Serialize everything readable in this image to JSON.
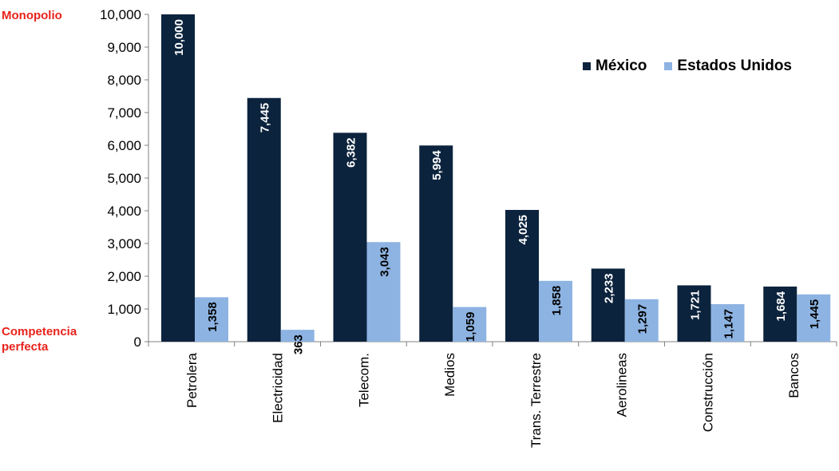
{
  "labels": {
    "top": "Monopolio",
    "bottom_line1": "Competencia",
    "bottom_line2": "perfecta"
  },
  "colors": {
    "mexico": "#0c233d",
    "usa": "#8db3e2",
    "side_labels": "#e8231b",
    "axis": "#808080"
  },
  "chart_data": {
    "type": "bar",
    "title": "",
    "xlabel": "",
    "ylabel": "",
    "ylim": [
      0,
      10000
    ],
    "yticks": [
      "0",
      "1,000",
      "2,000",
      "3,000",
      "4,000",
      "5,000",
      "6,000",
      "7,000",
      "8,000",
      "9,000",
      "10,000"
    ],
    "categories": [
      "Petrolera",
      "Electricidad",
      "Telecom.",
      "Medios",
      "Trans. Terrestre",
      "Aerolineas",
      "Construcción",
      "Bancos"
    ],
    "series": [
      {
        "name": "México",
        "values": [
          10000,
          7445,
          6382,
          5994,
          4025,
          2233,
          1721,
          1684
        ],
        "labels": [
          "10,000",
          "7,445",
          "6,382",
          "5,994",
          "4,025",
          "2,233",
          "1,721",
          "1,684"
        ]
      },
      {
        "name": "Estados Unidos",
        "values": [
          1358,
          363,
          3043,
          1059,
          1858,
          1297,
          1147,
          1445
        ],
        "labels": [
          "1,358",
          "363",
          "3,043",
          "1,059",
          "1,858",
          "1,297",
          "1,147",
          "1,445"
        ]
      }
    ],
    "legend": "top-right"
  }
}
